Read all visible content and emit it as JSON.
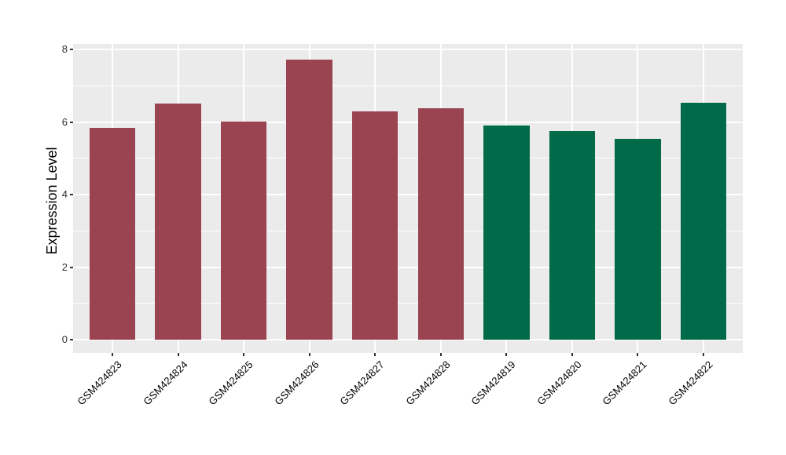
{
  "chart_data": {
    "type": "bar",
    "title": "",
    "xlabel": "",
    "ylabel": "Expression Level",
    "categories": [
      "GSM424823",
      "GSM424824",
      "GSM424825",
      "GSM424826",
      "GSM424827",
      "GSM424828",
      "GSM424819",
      "GSM424820",
      "GSM424821",
      "GSM424822"
    ],
    "values": [
      5.83,
      6.5,
      6.01,
      7.72,
      6.29,
      6.37,
      5.91,
      5.75,
      5.54,
      6.52
    ],
    "bar_colors": [
      "#9A4351",
      "#9A4351",
      "#9A4351",
      "#9A4351",
      "#9A4351",
      "#9A4351",
      "#016B49",
      "#016B49",
      "#016B49",
      "#016B49"
    ],
    "series": [
      {
        "name": "red-group",
        "color": "#9A4351",
        "categories": [
          "GSM424823",
          "GSM424824",
          "GSM424825",
          "GSM424826",
          "GSM424827",
          "GSM424828"
        ],
        "values": [
          5.83,
          6.5,
          6.01,
          7.72,
          6.29,
          6.37
        ]
      },
      {
        "name": "green-group",
        "color": "#016B49",
        "categories": [
          "GSM424819",
          "GSM424820",
          "GSM424821",
          "GSM424822"
        ],
        "values": [
          5.91,
          5.75,
          5.54,
          6.52
        ]
      }
    ],
    "ylim": [
      0,
      8.2
    ],
    "yticks_major": [
      0,
      2,
      4,
      6,
      8
    ],
    "ytick_labels": [
      "0",
      "2",
      "4",
      "6",
      "8"
    ],
    "yticks_minor": [
      1,
      3,
      5,
      7
    ],
    "grid": true,
    "legend": false,
    "panel_bg": "#EBEBEB",
    "grid_color": "#FFFFFF",
    "tick_color": "#333333",
    "bar_width_ratio": 0.7
  }
}
